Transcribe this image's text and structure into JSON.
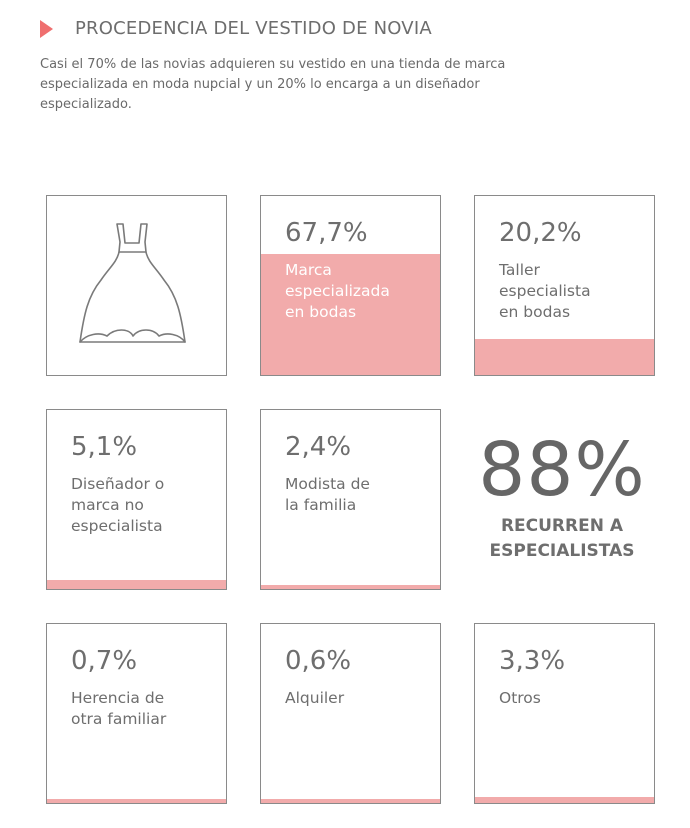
{
  "header": {
    "title": "PROCEDENCIA DEL VESTIDO DE NOVIA",
    "subtitle": "Casi el 70% de las novias adquieren su vestido en una tienda de marca especializada en moda nupcial y un 20% lo encarga a un diseñador especializado."
  },
  "colors": {
    "accent": "#ef6f6f",
    "fill": "#f2abab",
    "text": "#6b6b6b"
  },
  "icon": "wedding-dress-icon",
  "chart_data": {
    "type": "bar",
    "categories": [
      "Marca especializada en bodas",
      "Taller especialista en bodas",
      "Diseñador o marca no especialista",
      "Modista de la familia",
      "Herencia de otra familiar",
      "Alquiler",
      "Otros"
    ],
    "values": [
      67.7,
      20.2,
      5.1,
      2.4,
      0.7,
      0.6,
      3.3
    ],
    "value_labels": [
      "67,7%",
      "20,2%",
      "5,1%",
      "2,4%",
      "0,7%",
      "0,6%",
      "3,3%"
    ],
    "label_lines": [
      [
        "Marca",
        "especializada",
        "en bodas"
      ],
      [
        "Taller",
        "especialista",
        "en bodas"
      ],
      [
        "Diseñador o",
        "marca no",
        "especialista"
      ],
      [
        "Modista de",
        "la familia"
      ],
      [
        "Herencia de",
        "otra familiar"
      ],
      [
        "Alquiler"
      ],
      [
        "Otros"
      ]
    ]
  },
  "highlight": {
    "value": "88%",
    "caption_lines": [
      "RECURREN A",
      "ESPECIALISTAS"
    ]
  }
}
